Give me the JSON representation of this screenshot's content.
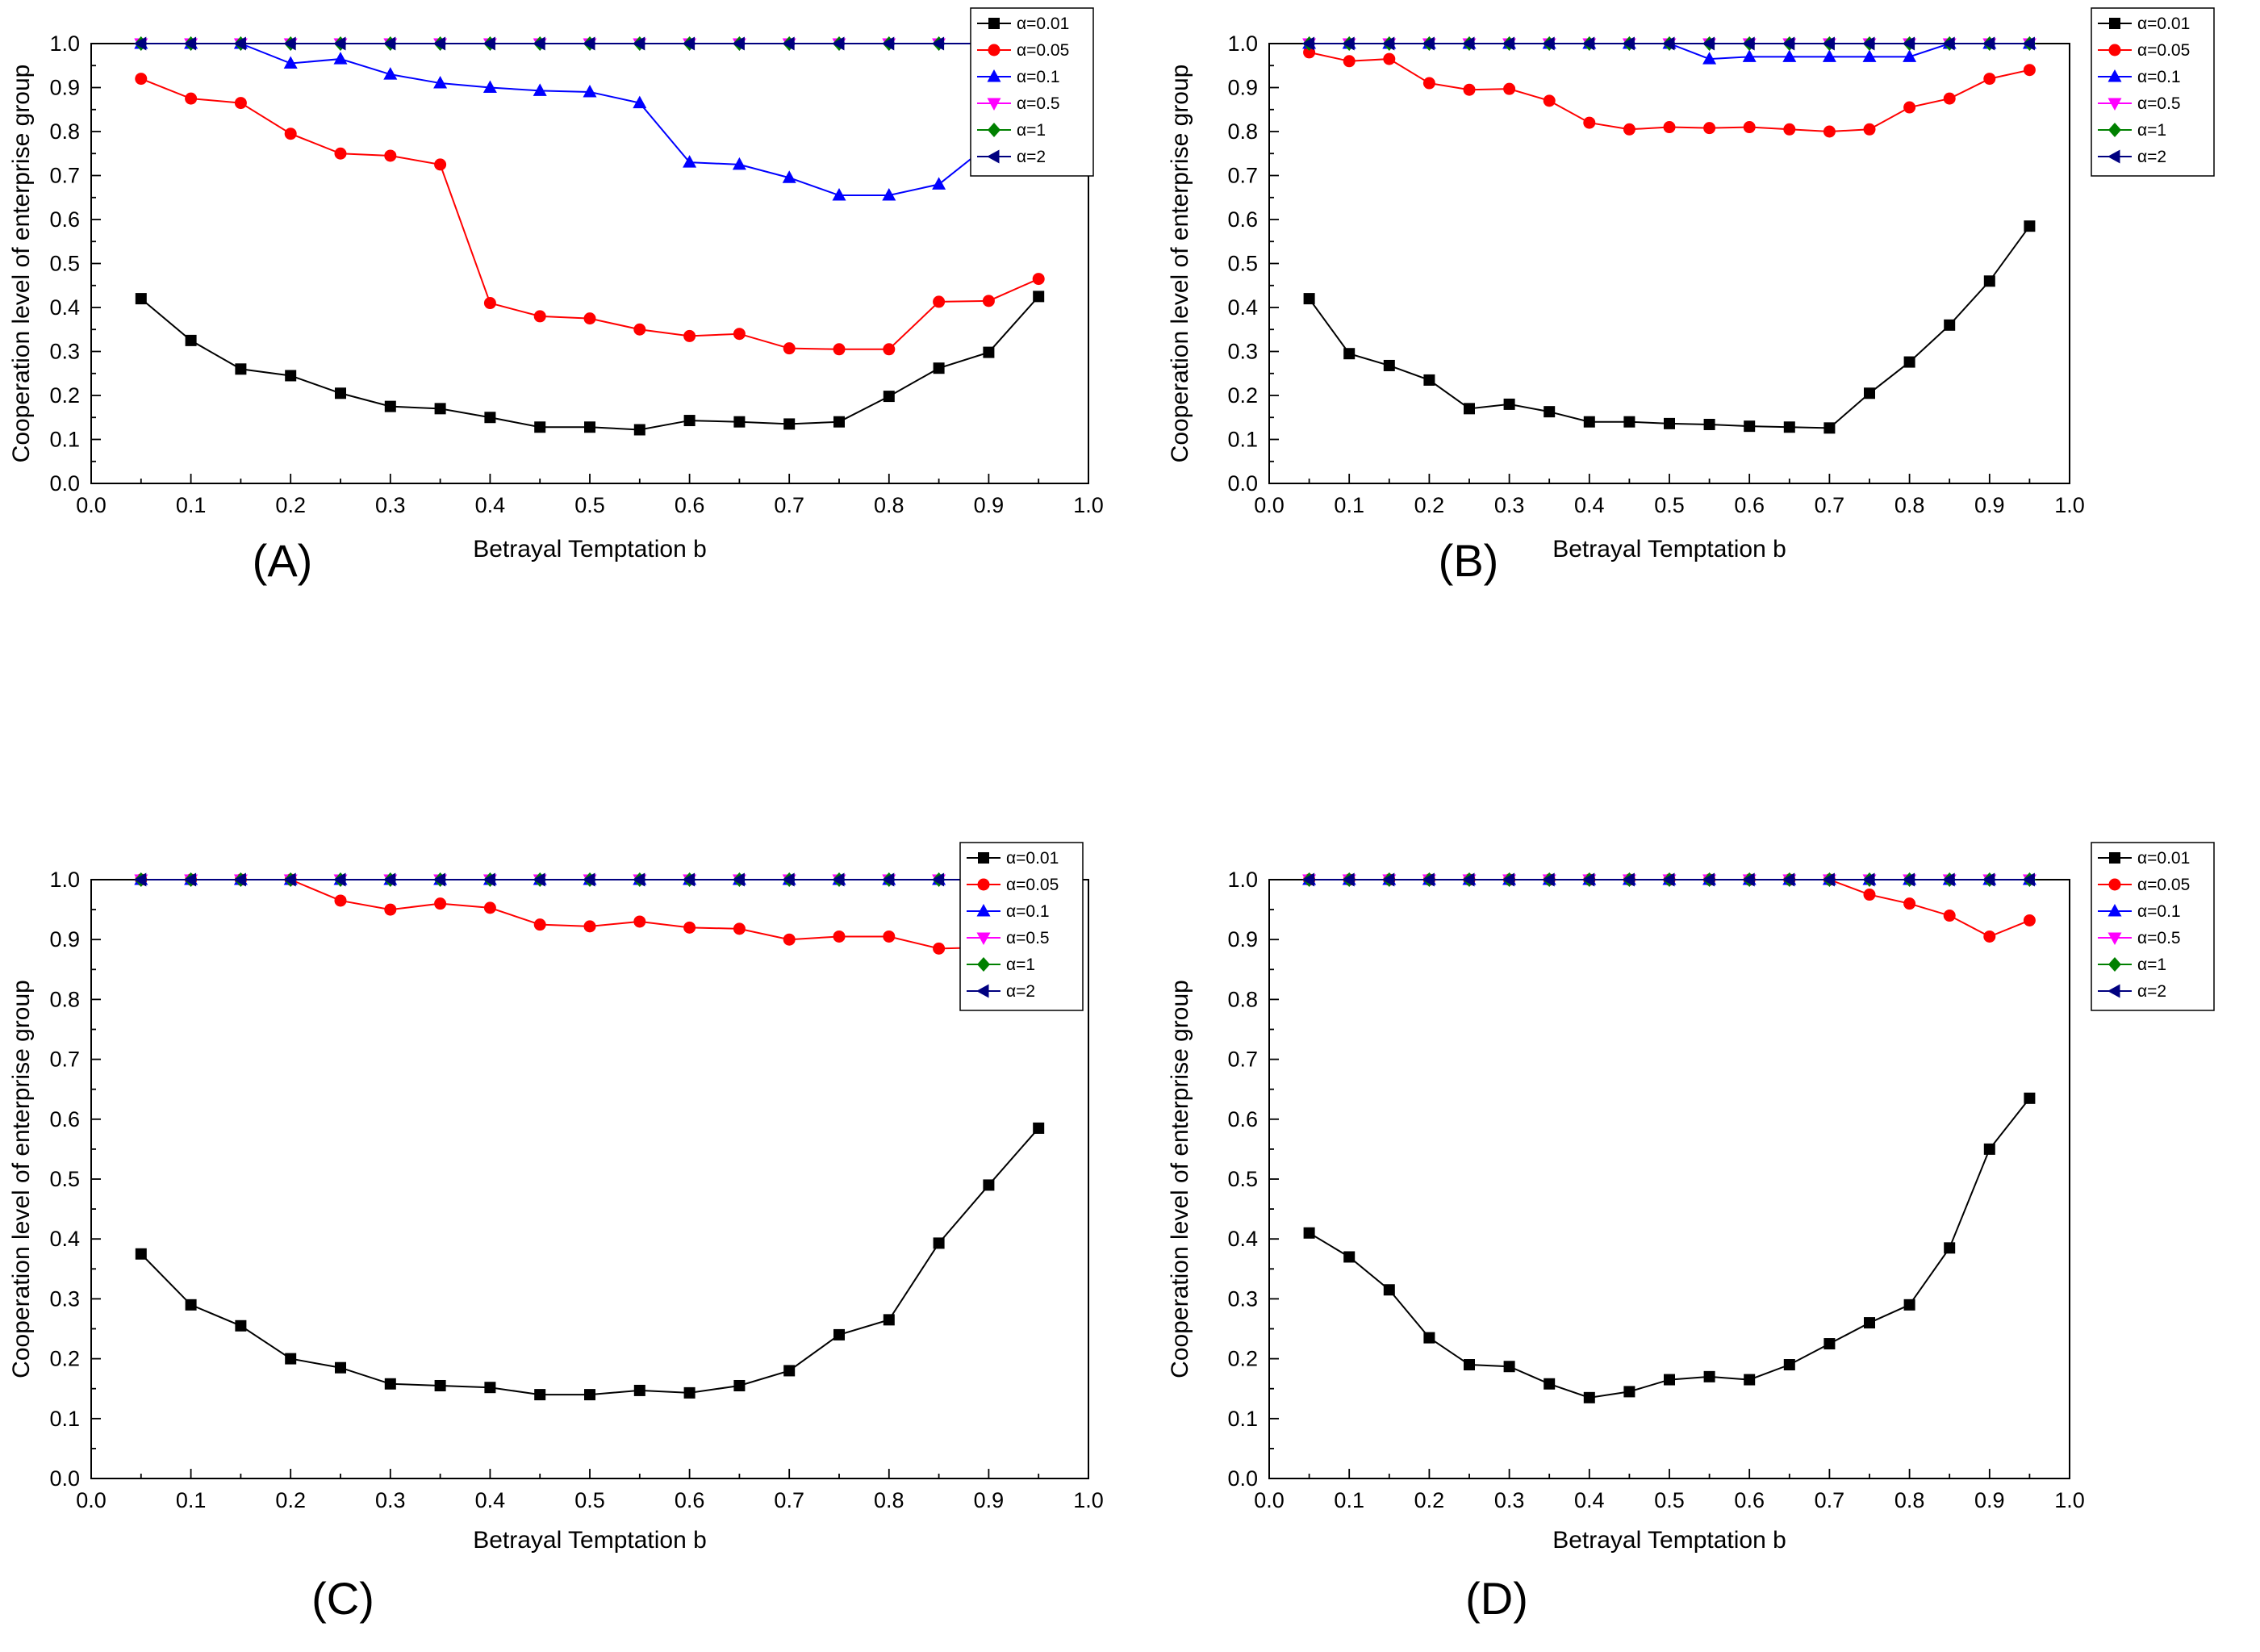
{
  "figure": {
    "background": "#ffffff"
  },
  "chart_data": [
    {
      "id": "A",
      "panel_label": "(A)",
      "type": "line",
      "title": "",
      "xlabel": "Betrayal Temptation b",
      "ylabel": "Cooperation level of enterprise group",
      "xlim": [
        0.0,
        1.0
      ],
      "ylim": [
        0.0,
        1.0
      ],
      "grid": false,
      "legend_position": "top-right-inside",
      "x": [
        0.05,
        0.1,
        0.15,
        0.2,
        0.25,
        0.3,
        0.35,
        0.4,
        0.45,
        0.5,
        0.55,
        0.6,
        0.65,
        0.7,
        0.75,
        0.8,
        0.85,
        0.9,
        0.95
      ],
      "series": [
        {
          "name": "α=0.01",
          "color": "#000000",
          "marker": "square",
          "values": [
            0.42,
            0.325,
            0.26,
            0.245,
            0.205,
            0.175,
            0.17,
            0.15,
            0.128,
            0.128,
            0.122,
            0.143,
            0.14,
            0.135,
            0.14,
            0.198,
            0.262,
            0.298,
            0.425
          ]
        },
        {
          "name": "α=0.05",
          "color": "#ff0000",
          "marker": "circle",
          "values": [
            0.92,
            0.875,
            0.865,
            0.795,
            0.75,
            0.745,
            0.725,
            0.41,
            0.38,
            0.375,
            0.35,
            0.335,
            0.34,
            0.307,
            0.305,
            0.305,
            0.413,
            0.415,
            0.465
          ]
        },
        {
          "name": "α=0.1",
          "color": "#0000ff",
          "marker": "triangle-up",
          "values": [
            1.0,
            1.0,
            1.0,
            0.955,
            0.965,
            0.93,
            0.91,
            0.9,
            0.893,
            0.89,
            0.865,
            0.73,
            0.725,
            0.695,
            0.655,
            0.655,
            0.68,
            0.77,
            0.785
          ]
        },
        {
          "name": "α=0.5",
          "color": "#ff00ff",
          "marker": "triangle-down",
          "values": [
            1.0,
            1.0,
            1.0,
            1.0,
            1.0,
            1.0,
            1.0,
            1.0,
            1.0,
            1.0,
            1.0,
            1.0,
            1.0,
            1.0,
            1.0,
            1.0,
            1.0,
            1.0,
            1.0
          ]
        },
        {
          "name": "α=1",
          "color": "#008000",
          "marker": "diamond",
          "values": [
            1.0,
            1.0,
            1.0,
            1.0,
            1.0,
            1.0,
            1.0,
            1.0,
            1.0,
            1.0,
            1.0,
            1.0,
            1.0,
            1.0,
            1.0,
            1.0,
            1.0,
            1.0,
            1.0
          ]
        },
        {
          "name": "α=2",
          "color": "#000080",
          "marker": "triangle-left",
          "values": [
            1.0,
            1.0,
            1.0,
            1.0,
            1.0,
            1.0,
            1.0,
            1.0,
            1.0,
            1.0,
            1.0,
            1.0,
            1.0,
            1.0,
            1.0,
            1.0,
            1.0,
            1.0,
            1.0
          ]
        }
      ]
    },
    {
      "id": "B",
      "panel_label": "(B)",
      "type": "line",
      "title": "",
      "xlabel": "Betrayal Temptation b",
      "ylabel": "Cooperation level of enterprise group",
      "xlim": [
        0.0,
        1.0
      ],
      "ylim": [
        0.0,
        1.0
      ],
      "grid": false,
      "legend_position": "top-right-outside",
      "x": [
        0.05,
        0.1,
        0.15,
        0.2,
        0.25,
        0.3,
        0.35,
        0.4,
        0.45,
        0.5,
        0.55,
        0.6,
        0.65,
        0.7,
        0.75,
        0.8,
        0.85,
        0.9,
        0.95
      ],
      "series": [
        {
          "name": "α=0.01",
          "color": "#000000",
          "marker": "square",
          "values": [
            0.42,
            0.295,
            0.268,
            0.235,
            0.17,
            0.18,
            0.163,
            0.14,
            0.14,
            0.136,
            0.134,
            0.13,
            0.128,
            0.126,
            0.205,
            0.276,
            0.36,
            0.46,
            0.585
          ]
        },
        {
          "name": "α=0.05",
          "color": "#ff0000",
          "marker": "circle",
          "values": [
            0.98,
            0.96,
            0.965,
            0.91,
            0.895,
            0.897,
            0.87,
            0.82,
            0.805,
            0.81,
            0.808,
            0.81,
            0.805,
            0.8,
            0.805,
            0.855,
            0.875,
            0.92,
            0.94
          ]
        },
        {
          "name": "α=0.1",
          "color": "#0000ff",
          "marker": "triangle-up",
          "values": [
            1.0,
            1.0,
            1.0,
            1.0,
            1.0,
            1.0,
            1.0,
            1.0,
            1.0,
            1.0,
            0.965,
            0.97,
            0.97,
            0.97,
            0.97,
            0.97,
            1.0,
            1.0,
            1.0
          ]
        },
        {
          "name": "α=0.5",
          "color": "#ff00ff",
          "marker": "triangle-down",
          "values": [
            1.0,
            1.0,
            1.0,
            1.0,
            1.0,
            1.0,
            1.0,
            1.0,
            1.0,
            1.0,
            1.0,
            1.0,
            1.0,
            1.0,
            1.0,
            1.0,
            1.0,
            1.0,
            1.0
          ]
        },
        {
          "name": "α=1",
          "color": "#008000",
          "marker": "diamond",
          "values": [
            1.0,
            1.0,
            1.0,
            1.0,
            1.0,
            1.0,
            1.0,
            1.0,
            1.0,
            1.0,
            1.0,
            1.0,
            1.0,
            1.0,
            1.0,
            1.0,
            1.0,
            1.0,
            1.0
          ]
        },
        {
          "name": "α=2",
          "color": "#000080",
          "marker": "triangle-left",
          "values": [
            1.0,
            1.0,
            1.0,
            1.0,
            1.0,
            1.0,
            1.0,
            1.0,
            1.0,
            1.0,
            1.0,
            1.0,
            1.0,
            1.0,
            1.0,
            1.0,
            1.0,
            1.0,
            1.0
          ]
        }
      ]
    },
    {
      "id": "C",
      "panel_label": "(C)",
      "type": "line",
      "title": "",
      "xlabel": "Betrayal Temptation b",
      "ylabel": "Cooperation level of enterprise group",
      "xlim": [
        0.0,
        1.0
      ],
      "ylim": [
        0.0,
        1.0
      ],
      "grid": false,
      "legend_position": "top-right-inside",
      "x": [
        0.05,
        0.1,
        0.15,
        0.2,
        0.25,
        0.3,
        0.35,
        0.4,
        0.45,
        0.5,
        0.55,
        0.6,
        0.65,
        0.7,
        0.75,
        0.8,
        0.85,
        0.9,
        0.95
      ],
      "series": [
        {
          "name": "α=0.01",
          "color": "#000000",
          "marker": "square",
          "values": [
            0.375,
            0.29,
            0.255,
            0.2,
            0.185,
            0.158,
            0.155,
            0.152,
            0.14,
            0.14,
            0.147,
            0.143,
            0.155,
            0.18,
            0.24,
            0.265,
            0.393,
            0.49,
            0.585
          ]
        },
        {
          "name": "α=0.05",
          "color": "#ff0000",
          "marker": "circle",
          "values": [
            1.0,
            1.0,
            1.0,
            1.0,
            0.965,
            0.95,
            0.96,
            0.953,
            0.925,
            0.922,
            0.93,
            0.92,
            0.918,
            0.9,
            0.905,
            0.905,
            0.885,
            0.887,
            0.97
          ]
        },
        {
          "name": "α=0.1",
          "color": "#0000ff",
          "marker": "triangle-up",
          "values": [
            1.0,
            1.0,
            1.0,
            1.0,
            1.0,
            1.0,
            1.0,
            1.0,
            1.0,
            1.0,
            1.0,
            1.0,
            1.0,
            1.0,
            1.0,
            1.0,
            1.0,
            1.0,
            1.0
          ]
        },
        {
          "name": "α=0.5",
          "color": "#ff00ff",
          "marker": "triangle-down",
          "values": [
            1.0,
            1.0,
            1.0,
            1.0,
            1.0,
            1.0,
            1.0,
            1.0,
            1.0,
            1.0,
            1.0,
            1.0,
            1.0,
            1.0,
            1.0,
            1.0,
            1.0,
            1.0,
            1.0
          ]
        },
        {
          "name": "α=1",
          "color": "#008000",
          "marker": "diamond",
          "values": [
            1.0,
            1.0,
            1.0,
            1.0,
            1.0,
            1.0,
            1.0,
            1.0,
            1.0,
            1.0,
            1.0,
            1.0,
            1.0,
            1.0,
            1.0,
            1.0,
            1.0,
            1.0,
            1.0
          ]
        },
        {
          "name": "α=2",
          "color": "#000080",
          "marker": "triangle-left",
          "values": [
            1.0,
            1.0,
            1.0,
            1.0,
            1.0,
            1.0,
            1.0,
            1.0,
            1.0,
            1.0,
            1.0,
            1.0,
            1.0,
            1.0,
            1.0,
            1.0,
            1.0,
            1.0,
            1.0
          ]
        }
      ]
    },
    {
      "id": "D",
      "panel_label": "(D)",
      "type": "line",
      "title": "",
      "xlabel": "Betrayal Temptation b",
      "ylabel": "Cooperation level of enterprise group",
      "xlim": [
        0.0,
        1.0
      ],
      "ylim": [
        0.0,
        1.0
      ],
      "grid": false,
      "legend_position": "top-right-outside",
      "x": [
        0.05,
        0.1,
        0.15,
        0.2,
        0.25,
        0.3,
        0.35,
        0.4,
        0.45,
        0.5,
        0.55,
        0.6,
        0.65,
        0.7,
        0.75,
        0.8,
        0.85,
        0.9,
        0.95
      ],
      "series": [
        {
          "name": "α=0.01",
          "color": "#000000",
          "marker": "square",
          "values": [
            0.41,
            0.37,
            0.315,
            0.235,
            0.19,
            0.187,
            0.158,
            0.135,
            0.145,
            0.165,
            0.17,
            0.165,
            0.19,
            0.225,
            0.26,
            0.29,
            0.385,
            0.55,
            0.635
          ]
        },
        {
          "name": "α=0.05",
          "color": "#ff0000",
          "marker": "circle",
          "values": [
            1.0,
            1.0,
            1.0,
            1.0,
            1.0,
            1.0,
            1.0,
            1.0,
            1.0,
            1.0,
            1.0,
            1.0,
            1.0,
            1.0,
            0.975,
            0.96,
            0.94,
            0.905,
            0.932
          ]
        },
        {
          "name": "α=0.1",
          "color": "#0000ff",
          "marker": "triangle-up",
          "values": [
            1.0,
            1.0,
            1.0,
            1.0,
            1.0,
            1.0,
            1.0,
            1.0,
            1.0,
            1.0,
            1.0,
            1.0,
            1.0,
            1.0,
            1.0,
            1.0,
            1.0,
            1.0,
            1.0
          ]
        },
        {
          "name": "α=0.5",
          "color": "#ff00ff",
          "marker": "triangle-down",
          "values": [
            1.0,
            1.0,
            1.0,
            1.0,
            1.0,
            1.0,
            1.0,
            1.0,
            1.0,
            1.0,
            1.0,
            1.0,
            1.0,
            1.0,
            1.0,
            1.0,
            1.0,
            1.0,
            1.0
          ]
        },
        {
          "name": "α=1",
          "color": "#008000",
          "marker": "diamond",
          "values": [
            1.0,
            1.0,
            1.0,
            1.0,
            1.0,
            1.0,
            1.0,
            1.0,
            1.0,
            1.0,
            1.0,
            1.0,
            1.0,
            1.0,
            1.0,
            1.0,
            1.0,
            1.0,
            1.0
          ]
        },
        {
          "name": "α=2",
          "color": "#000080",
          "marker": "triangle-left",
          "values": [
            1.0,
            1.0,
            1.0,
            1.0,
            1.0,
            1.0,
            1.0,
            1.0,
            1.0,
            1.0,
            1.0,
            1.0,
            1.0,
            1.0,
            1.0,
            1.0,
            1.0,
            1.0,
            1.0
          ]
        }
      ]
    }
  ]
}
